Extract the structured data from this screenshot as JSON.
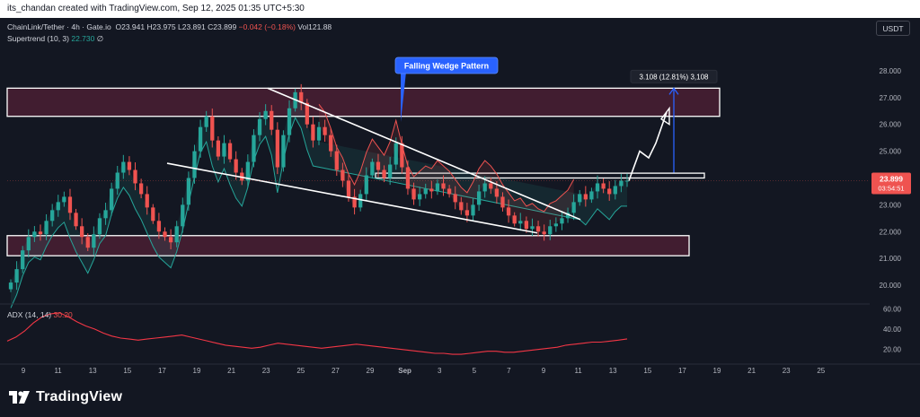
{
  "header": {
    "caption": "its_chandan created with TradingView.com, Sep 12, 2025 01:35 UTC+5:30"
  },
  "legend": {
    "symbol": "ChainLink/Tether · 4h · Gate.io",
    "open": "O23.941",
    "high": "H23.975",
    "low": "L23.891",
    "close": "C23.899",
    "change": "−0.042 (−0.18%)",
    "volume": "Vol121.88",
    "indicator_name": "Supertrend (10, 3)",
    "indicator_value": "22.730",
    "indicator_extra": "∅"
  },
  "currency_button": "USDT",
  "adx_legend": {
    "name": "ADX (14, 14)",
    "value": "30.20"
  },
  "footer": {
    "logo_text": "TradingView"
  },
  "colors": {
    "background": "#131722",
    "up": "#26a69a",
    "down": "#ef5350",
    "zone_fill": "#4a1f33",
    "zone_border": "#ffffff",
    "annotation_blue": "#2962ff",
    "adx_line": "#f23645"
  },
  "chart_data": [
    {
      "type": "candlestick",
      "title": "ChainLink/Tether · 4h · Gate.io",
      "x_tick_labels": [
        "9",
        "11",
        "13",
        "15",
        "17",
        "19",
        "21",
        "23",
        "25",
        "27",
        "29",
        "Sep",
        "3",
        "5",
        "7",
        "9",
        "11",
        "13",
        "15",
        "17",
        "19",
        "21",
        "23",
        "25"
      ],
      "y_tick_labels": [
        "28.000",
        "27.000",
        "26.000",
        "25.000",
        "24.000",
        "23.000",
        "22.000",
        "21.000",
        "20.000"
      ],
      "ylim": [
        19.4,
        28.9
      ],
      "last_price_label": "23.899",
      "countdown_label": "03:54:51",
      "grid": false,
      "series_path_close": [
        20.1,
        20.6,
        21.3,
        21.8,
        22.0,
        21.9,
        22.4,
        22.8,
        23.1,
        23.3,
        22.7,
        22.2,
        21.8,
        21.4,
        21.9,
        22.5,
        22.8,
        23.6,
        24.2,
        24.6,
        24.3,
        23.8,
        23.4,
        22.9,
        22.4,
        22.0,
        21.8,
        21.6,
        22.2,
        23.0,
        24.0,
        25.0,
        25.9,
        26.3,
        25.4,
        24.8,
        25.3,
        24.7,
        24.2,
        23.9,
        24.6,
        25.6,
        26.2,
        26.5,
        25.8,
        24.4,
        25.6,
        26.6,
        27.2,
        26.8,
        26.0,
        25.4,
        25.9,
        25.6,
        25.0,
        24.3,
        23.9,
        23.3,
        22.9,
        23.4,
        24.1,
        24.6,
        24.3,
        24.0,
        24.5,
        25.3,
        24.4,
        23.6,
        23.2,
        23.4,
        23.6,
        23.5,
        23.8,
        23.6,
        23.4,
        23.1,
        22.8,
        22.6,
        23.0,
        23.5,
        23.8,
        23.6,
        23.3,
        22.9,
        22.6,
        22.3,
        22.4,
        22.1,
        22.2,
        22.0,
        21.9,
        22.2,
        22.3,
        22.5,
        22.7,
        23.1,
        23.4,
        23.2,
        23.5,
        23.8,
        23.6,
        23.4,
        23.7,
        23.9,
        23.9
      ],
      "series": [
        {
          "name": "Supertrend (10, 3)",
          "values_last": 22.73
        },
        {
          "name": "ADX (14, 14)",
          "values_last": 30.2
        }
      ],
      "zones": [
        {
          "from": 26.3,
          "to": 27.35
        },
        {
          "from": 21.1,
          "to": 21.85
        },
        {
          "from": 24.0,
          "to": 24.18
        }
      ],
      "annotations": [
        {
          "type": "callout",
          "text": "Falling Wedge Pattern"
        },
        {
          "type": "measure",
          "text": "3.108 (12.81%) 3,108",
          "from": 24.2,
          "to": 27.35
        }
      ]
    },
    {
      "type": "line",
      "title": "ADX (14, 14)",
      "y_tick_labels": [
        "60.00",
        "40.00",
        "20.00"
      ],
      "ylim": [
        8,
        62
      ],
      "values": [
        28,
        32,
        38,
        46,
        52,
        55,
        56,
        52,
        47,
        43,
        40,
        36,
        33,
        31,
        30,
        29,
        30,
        31,
        32,
        33,
        34,
        32,
        30,
        28,
        26,
        24,
        23,
        22,
        21,
        22,
        24,
        26,
        25,
        24,
        23,
        22,
        21,
        22,
        23,
        24,
        25,
        24,
        23,
        22,
        21,
        20,
        19,
        18,
        17,
        16,
        16,
        15,
        15,
        16,
        17,
        18,
        18,
        17,
        17,
        18,
        19,
        20,
        21,
        22,
        24,
        25,
        26,
        27,
        27,
        28,
        29,
        30.2
      ]
    }
  ]
}
